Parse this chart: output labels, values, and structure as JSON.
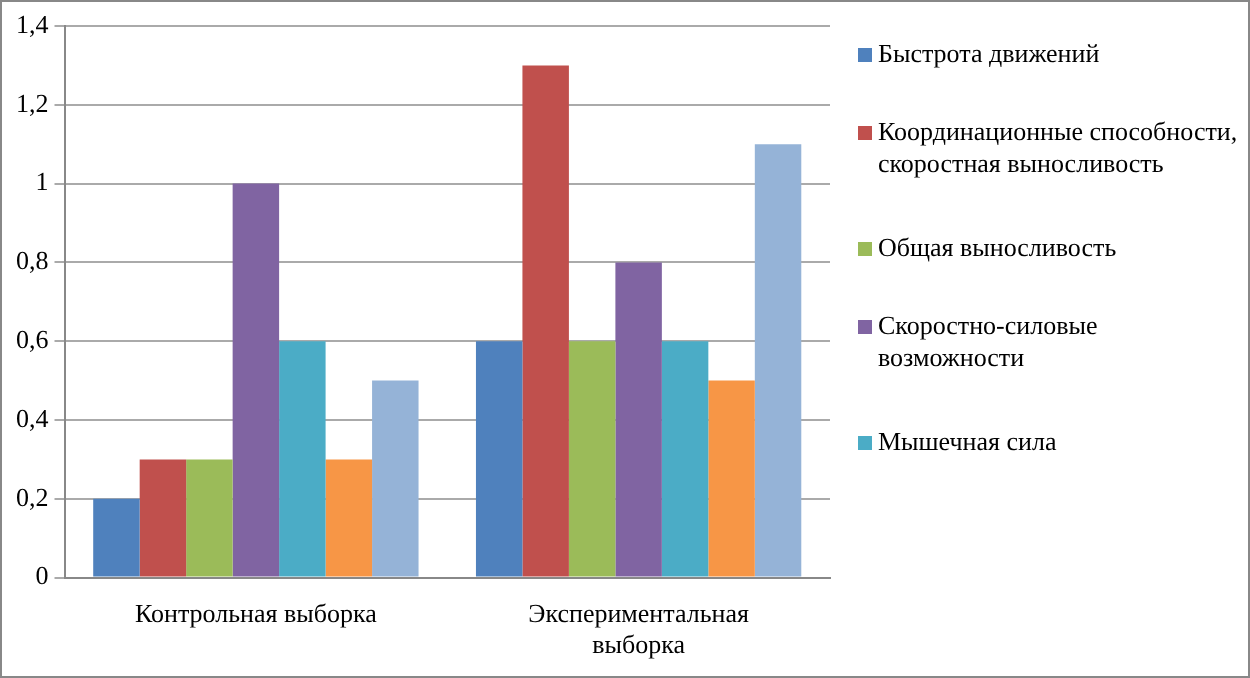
{
  "chart_data": {
    "type": "bar",
    "categories": [
      "Контрольная выборка",
      "Экспериментальная выборка"
    ],
    "series": [
      {
        "name": "Быстрота движений",
        "color": "#4f81bd",
        "values": [
          0.2,
          0.6
        ]
      },
      {
        "name": "Координационные способности, скоростная выносливость",
        "color": "#c0504d",
        "values": [
          0.3,
          1.3
        ]
      },
      {
        "name": "Общая выносливость",
        "color": "#9bbb59",
        "values": [
          0.3,
          0.6
        ]
      },
      {
        "name": "Скоростно-силовые возможности",
        "color": "#8064a2",
        "values": [
          1.0,
          0.8
        ]
      },
      {
        "name": "Мышечная сила",
        "color": "#4bacc6",
        "values": [
          0.6,
          0.6
        ]
      },
      {
        "color": "#f79646",
        "values": [
          0.3,
          0.5
        ]
      },
      {
        "color": "#95b3d7",
        "values": [
          0.5,
          1.1
        ]
      }
    ],
    "ylim": [
      0,
      1.4
    ],
    "yticks": [
      0,
      {
        "value": 0.2,
        "label": "0,2"
      },
      {
        "value": 0.4,
        "label": "0,4"
      },
      {
        "value": 0.6,
        "label": "0,6"
      },
      {
        "value": 0.8,
        "label": "0,8"
      },
      1,
      {
        "value": 1.2,
        "label": "1,2"
      },
      {
        "value": 1.4,
        "label": "1,4"
      }
    ],
    "grid": "y",
    "legend": "right"
  }
}
